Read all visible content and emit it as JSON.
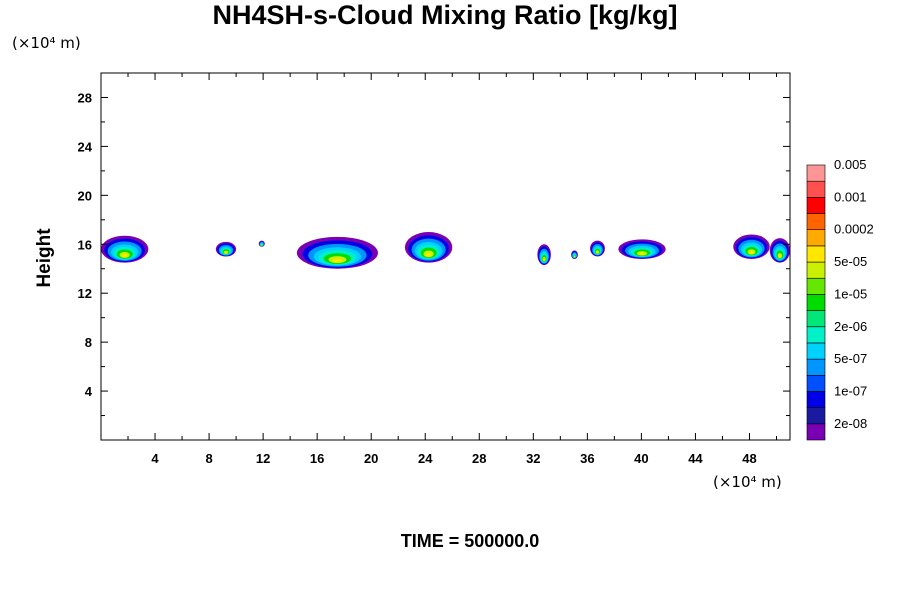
{
  "title": "NH4SH-s-Cloud Mixing Ratio [kg/kg]",
  "y_unit": "(×10⁴ m)",
  "x_unit": "(×10⁴ m)",
  "time_label": "TIME = 500000.0",
  "chart_data": {
    "type": "heatmap",
    "ylabel": "Height",
    "xlim": [
      0,
      51
    ],
    "ylim": [
      0,
      30
    ],
    "x_ticks": [
      "4",
      "8",
      "12",
      "16",
      "20",
      "24",
      "28",
      "32",
      "36",
      "40",
      "44",
      "48"
    ],
    "y_ticks": [
      "4",
      "8",
      "12",
      "16",
      "20",
      "24",
      "28"
    ],
    "colorbar": {
      "colors": [
        "#7a00b4",
        "#1a1aa0",
        "#0000e6",
        "#0050ff",
        "#0096ff",
        "#00d2ff",
        "#00f0c8",
        "#00e678",
        "#00dc00",
        "#64e600",
        "#c8f000",
        "#ffe600",
        "#ffaa00",
        "#ff6400",
        "#ff0000",
        "#ff5050",
        "#ff9696"
      ],
      "labels": [
        "2e-08",
        "1e-07",
        "5e-07",
        "2e-06",
        "1e-05",
        "5e-05",
        "0.0002",
        "0.001",
        "0.005"
      ]
    },
    "cloud_regions": [
      {
        "x": [
          0,
          3.5
        ],
        "y": [
          14.5,
          16.7
        ]
      },
      {
        "x": [
          8.5,
          10
        ],
        "y": [
          15.0,
          16.2
        ]
      },
      {
        "x": [
          11.7,
          12.1
        ],
        "y": [
          15.8,
          16.3
        ]
      },
      {
        "x": [
          14.5,
          20.5
        ],
        "y": [
          14.0,
          16.6
        ]
      },
      {
        "x": [
          22.5,
          26
        ],
        "y": [
          14.5,
          17.0
        ]
      },
      {
        "x": [
          32.3,
          33.3
        ],
        "y": [
          14.3,
          16.0
        ]
      },
      {
        "x": [
          34.8,
          35.3
        ],
        "y": [
          14.8,
          15.5
        ]
      },
      {
        "x": [
          36.2,
          37.3
        ],
        "y": [
          15.0,
          16.3
        ]
      },
      {
        "x": [
          38.3,
          41.8
        ],
        "y": [
          14.8,
          16.4
        ]
      },
      {
        "x": [
          46.8,
          49.5
        ],
        "y": [
          14.8,
          16.8
        ]
      },
      {
        "x": [
          49.5,
          51
        ],
        "y": [
          14.5,
          16.5
        ]
      }
    ]
  }
}
